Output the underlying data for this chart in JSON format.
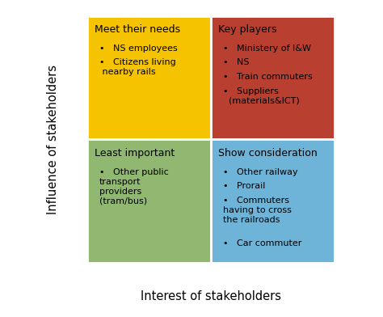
{
  "quadrants": [
    {
      "label": "Meet their needs",
      "color": "#F5C300",
      "col": 0,
      "row": 1,
      "title_bold": false,
      "items": [
        "NS employees",
        "Citizens living\n nearby rails"
      ]
    },
    {
      "label": "Key players",
      "color": "#B94030",
      "col": 1,
      "row": 1,
      "title_bold": false,
      "items": [
        "Ministery of I&W",
        "NS",
        "Train commuters",
        "Suppliers\n  (materials&ICT)"
      ]
    },
    {
      "label": "Least important",
      "color": "#90B870",
      "col": 0,
      "row": 0,
      "title_bold": false,
      "items": [
        "Other public\ntransport\nproviders\n(tram/bus)"
      ]
    },
    {
      "label": "Show consideration",
      "color": "#6EB4D8",
      "col": 1,
      "row": 0,
      "title_bold": false,
      "items": [
        "Other railway",
        "Prorail",
        "Commuters\nhaving to cross\nthe railroads",
        "Car commuter"
      ]
    }
  ],
  "xlabel": "Interest of stakeholders",
  "ylabel": "Influence of stakeholders",
  "arrow_color": "#3B6CC5",
  "title_fontsize": 9,
  "item_fontsize": 8,
  "axis_label_fontsize": 10.5,
  "background_color": "#ffffff"
}
